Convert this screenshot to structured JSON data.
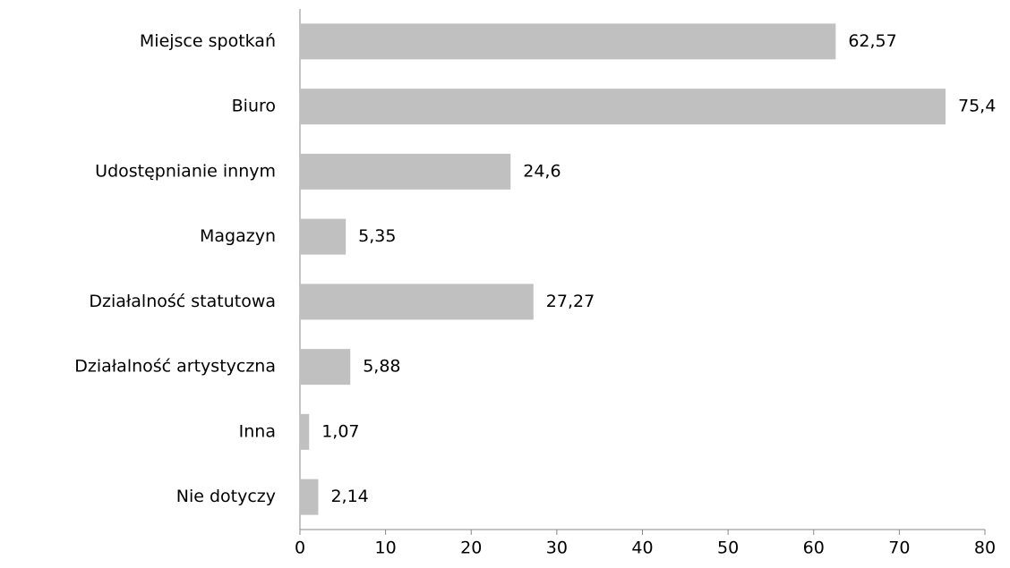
{
  "chart_data": {
    "type": "bar",
    "orientation": "horizontal",
    "categories": [
      "Miejsce spotkań",
      "Biuro",
      "Udostępnianie innym",
      "Magazyn",
      "Działalność statutowa",
      "Działalność artystyczna",
      "Inna",
      "Nie dotyczy"
    ],
    "values": [
      62.57,
      75.4,
      24.6,
      5.35,
      27.27,
      5.88,
      1.07,
      2.14
    ],
    "value_labels": [
      "62,57",
      "75,4",
      "24,6",
      "5,35",
      "27,27",
      "5,88",
      "1,07",
      "2,14"
    ],
    "color": "#c0c0c0",
    "xlim": [
      0,
      80
    ],
    "xticks": [
      0,
      10,
      20,
      30,
      40,
      50,
      60,
      70,
      80
    ],
    "grid": false
  }
}
